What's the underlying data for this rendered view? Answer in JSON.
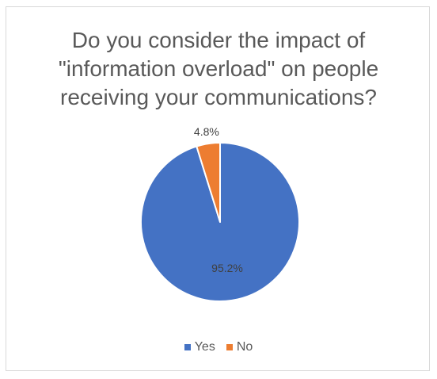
{
  "chart_data": {
    "type": "pie",
    "title": "Do you consider the impact of\n\"information overload\" on people\nreceiving your communications?",
    "categories": [
      "Yes",
      "No"
    ],
    "values": [
      95.2,
      4.8
    ],
    "data_labels": [
      "95.2%",
      "4.8%"
    ],
    "colors": [
      "#4472c4",
      "#ed7d31"
    ],
    "legend_position": "bottom",
    "slice_border_color": "#ffffff"
  }
}
